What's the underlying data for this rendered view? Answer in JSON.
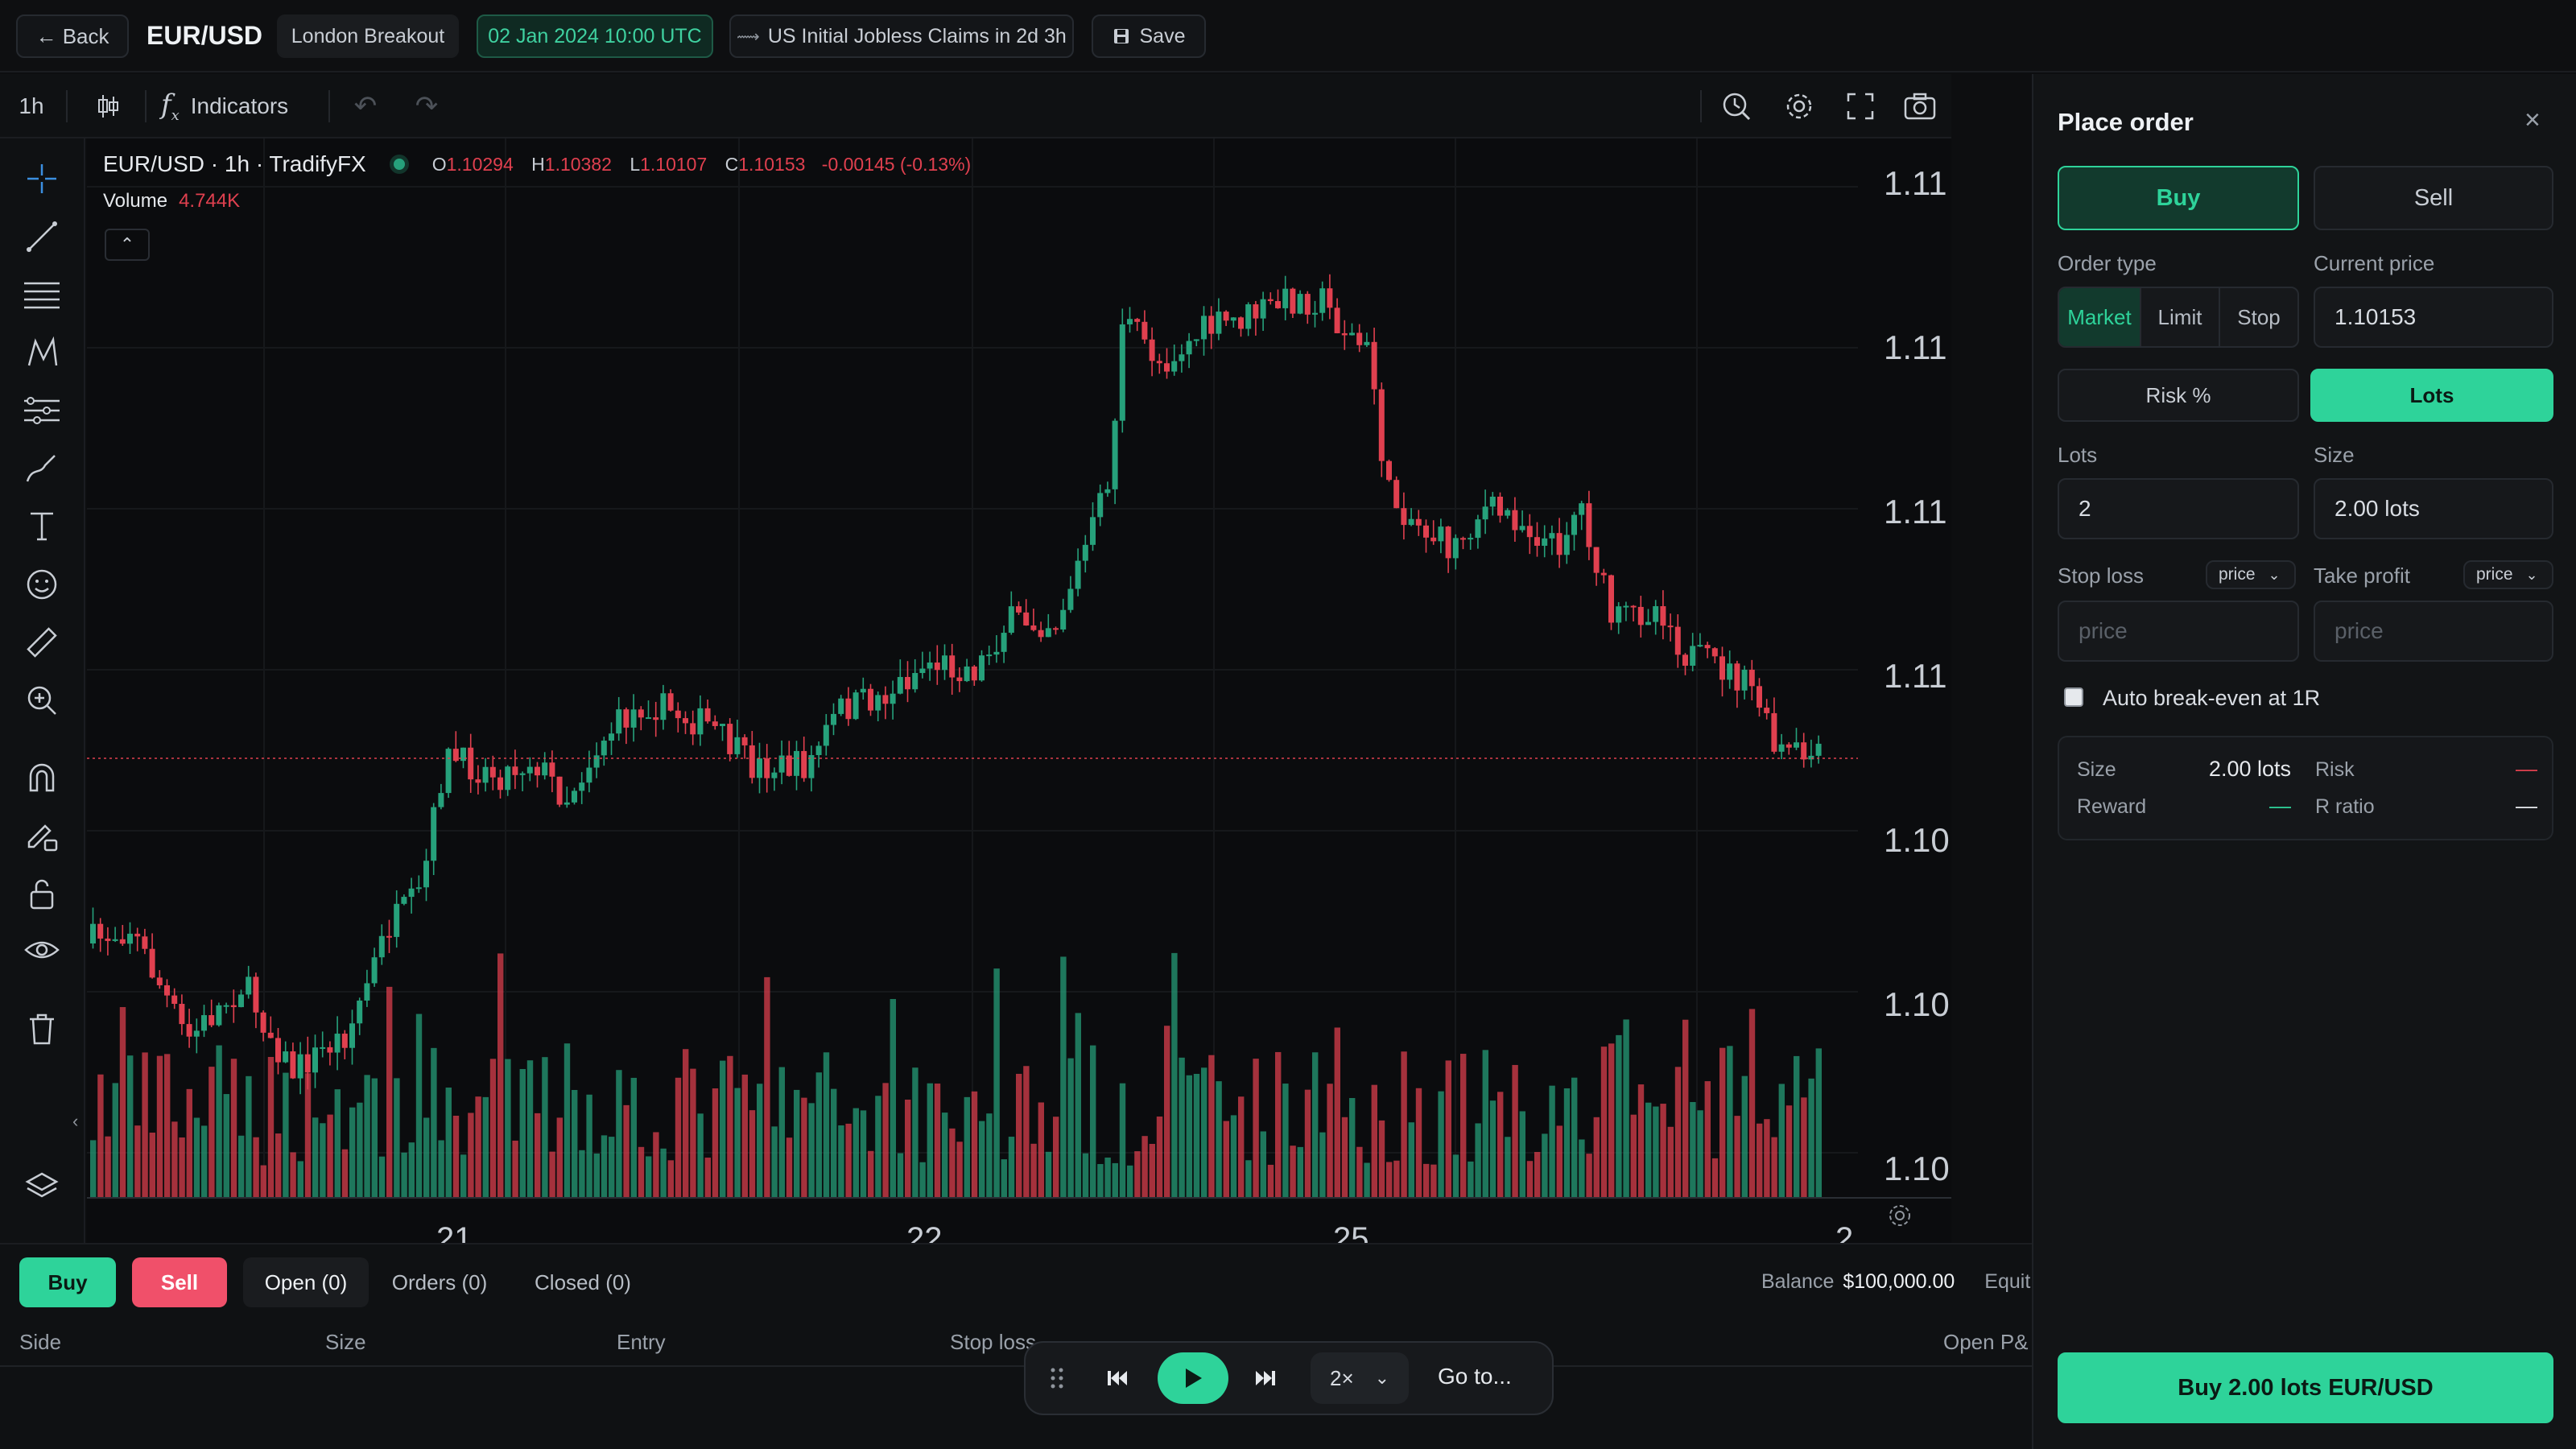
{
  "topbar": {
    "back_label": "← Back",
    "symbol": "EUR/USD",
    "session": "London Breakout",
    "datetime": "02 Jan 2024 10:00 UTC",
    "event": "US Initial Jobless Claims in 2d 3h",
    "save_label": "Save"
  },
  "toolbar": {
    "timeframe": "1h",
    "indicators_label": "Indicators"
  },
  "chart": {
    "legend_title": "EUR/USD · 1h · TradifyFX",
    "ohlc": {
      "o_label": "O",
      "o": "1.10294",
      "h_label": "H",
      "h": "1.10382",
      "l_label": "L",
      "l": "1.10107",
      "c_label": "C",
      "c": "1.10153",
      "change": "-0.00145 (-0.13%)"
    },
    "volume_label": "Volume",
    "volume_value": "4.744K",
    "price_labels": [
      "1.11",
      "1.11",
      "1.11",
      "1.11",
      "1.10",
      "1.10",
      "1.10"
    ],
    "date_labels": [
      "21",
      "22",
      "25",
      "2"
    ],
    "up_color": "#26a17b",
    "down_color": "#e0404f"
  },
  "order_panel": {
    "title": "Place order",
    "buy_label": "Buy",
    "sell_label": "Sell",
    "order_type_label": "Order type",
    "order_types": [
      "Market",
      "Limit",
      "Stop"
    ],
    "current_price_label": "Current price",
    "current_price": "1.10153",
    "risk_pct_label": "Risk %",
    "lots_toggle_label": "Lots",
    "lots_label": "Lots",
    "lots_value": "2",
    "size_label": "Size",
    "size_value": "2.00 lots",
    "stop_loss_label": "Stop loss",
    "stop_loss_mode": "price",
    "stop_loss_placeholder": "price",
    "take_profit_label": "Take profit",
    "take_profit_mode": "price",
    "take_profit_placeholder": "price",
    "auto_be_label": "Auto break-even at 1R",
    "summary": {
      "size_label": "Size",
      "size_value": "2.00 lots",
      "risk_label": "Risk",
      "risk_value": "—",
      "reward_label": "Reward",
      "reward_value": "—",
      "rratio_label": "R ratio",
      "rratio_value": "—"
    },
    "submit_label": "Buy 2.00 lots EUR/USD",
    "accent": "#2ed39a"
  },
  "bottom": {
    "buy_label": "Buy",
    "sell_label": "Sell",
    "tabs": [
      "Open (0)",
      "Orders (0)",
      "Closed (0)"
    ],
    "balance_label": "Balance",
    "balance_value": "$100,000.00",
    "equity_label": "Equit",
    "columns": [
      "Side",
      "Size",
      "Entry",
      "Stop loss",
      "Open P&"
    ]
  },
  "replay": {
    "speed": "2×",
    "goto_label": "Go to..."
  }
}
